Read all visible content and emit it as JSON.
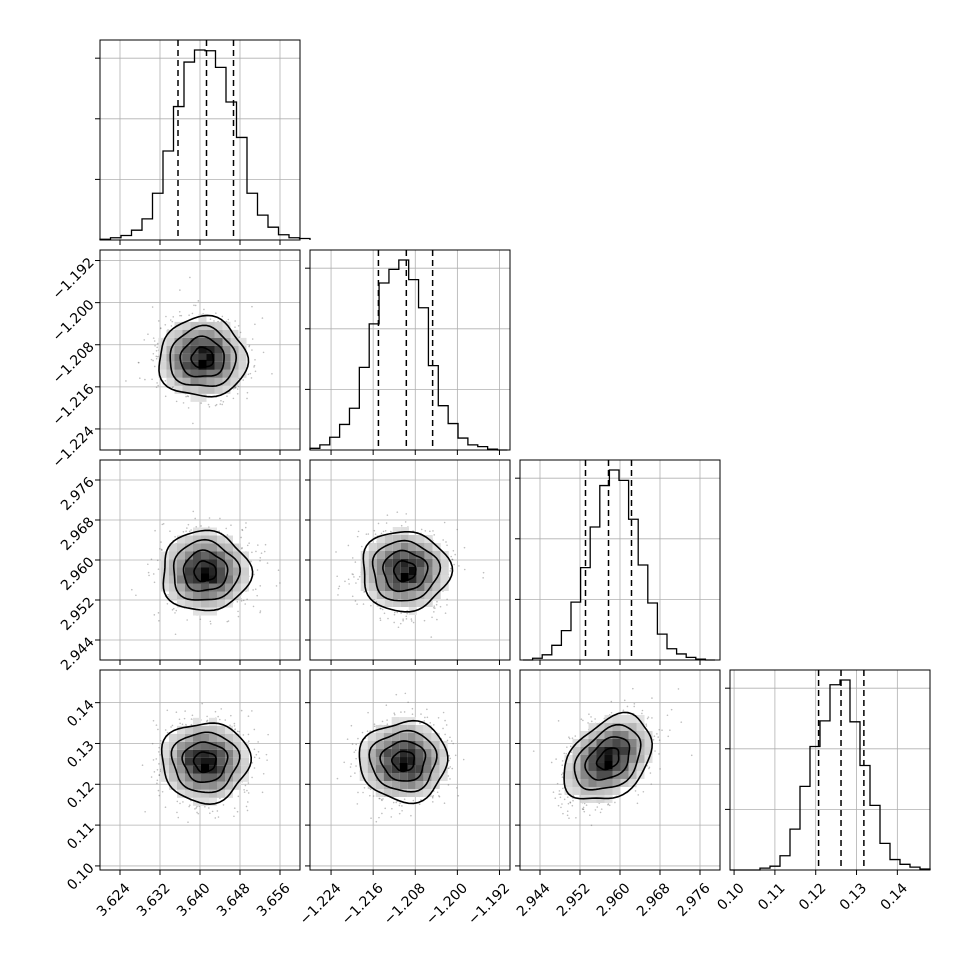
{
  "chart_data": {
    "type": "corner",
    "grid": true,
    "parameters": [
      {
        "index": 0,
        "range": [
          3.62,
          3.66
        ],
        "ticks": [
          "3.624",
          "3.632",
          "3.640",
          "3.648",
          "3.656"
        ],
        "quantiles": [
          3.6356,
          3.6413,
          3.6467
        ],
        "hist_edges": [
          3.62,
          3.662
        ],
        "hist_counts": [
          1,
          3,
          6,
          13,
          28,
          62,
          118,
          177,
          236,
          252,
          251,
          229,
          183,
          136,
          62,
          33,
          17,
          7,
          3,
          2
        ]
      },
      {
        "index": 1,
        "range": [
          -1.228,
          -1.19
        ],
        "ticks": [
          "−1.224",
          "−1.216",
          "−1.208",
          "−1.200",
          "−1.192"
        ],
        "quantiles": [
          -1.215,
          -1.2097,
          -1.2047
        ],
        "hist_edges": [
          -1.228,
          -1.1905
        ],
        "hist_counts": [
          2,
          6,
          15,
          30,
          49,
          97,
          148,
          196,
          212,
          223,
          200,
          167,
          99,
          52,
          31,
          14,
          6,
          4,
          1,
          0
        ]
      },
      {
        "index": 2,
        "range": [
          2.94,
          2.98
        ],
        "ticks": [
          "2.944",
          "2.952",
          "2.960",
          "2.968",
          "2.976"
        ],
        "quantiles": [
          2.9531,
          2.9577,
          2.9623
        ],
        "hist_edges": [
          2.9406,
          2.979
        ],
        "hist_counts": [
          0,
          2,
          6,
          17,
          34,
          67,
          107,
          154,
          202,
          220,
          208,
          163,
          110,
          66,
          30,
          13,
          7,
          3,
          1,
          0
        ]
      },
      {
        "index": 3,
        "range": [
          0.099,
          0.148
        ],
        "ticks": [
          "0.10",
          "0.11",
          "0.12",
          "0.13",
          "0.14"
        ],
        "quantiles": [
          0.1207,
          0.1262,
          0.1318
        ],
        "hist_edges": [
          0.099,
          0.148
        ],
        "hist_counts": [
          0,
          0,
          0,
          2,
          4,
          15,
          43,
          88,
          130,
          157,
          195,
          200,
          156,
          110,
          68,
          28,
          11,
          6,
          3,
          1
        ]
      }
    ],
    "pairs": [
      {
        "x": 0,
        "y": 1,
        "center": [
          3.6405,
          -1.2105
        ]
      },
      {
        "x": 0,
        "y": 2,
        "center": [
          3.641,
          2.9577
        ]
      },
      {
        "x": 1,
        "y": 2,
        "center": [
          -1.21,
          2.9578
        ]
      },
      {
        "x": 0,
        "y": 3,
        "center": [
          3.641,
          0.1255
        ]
      },
      {
        "x": 1,
        "y": 3,
        "center": [
          -1.2102,
          0.1257
        ]
      },
      {
        "x": 2,
        "y": 3,
        "center": [
          2.9577,
          0.1262
        ]
      }
    ]
  }
}
